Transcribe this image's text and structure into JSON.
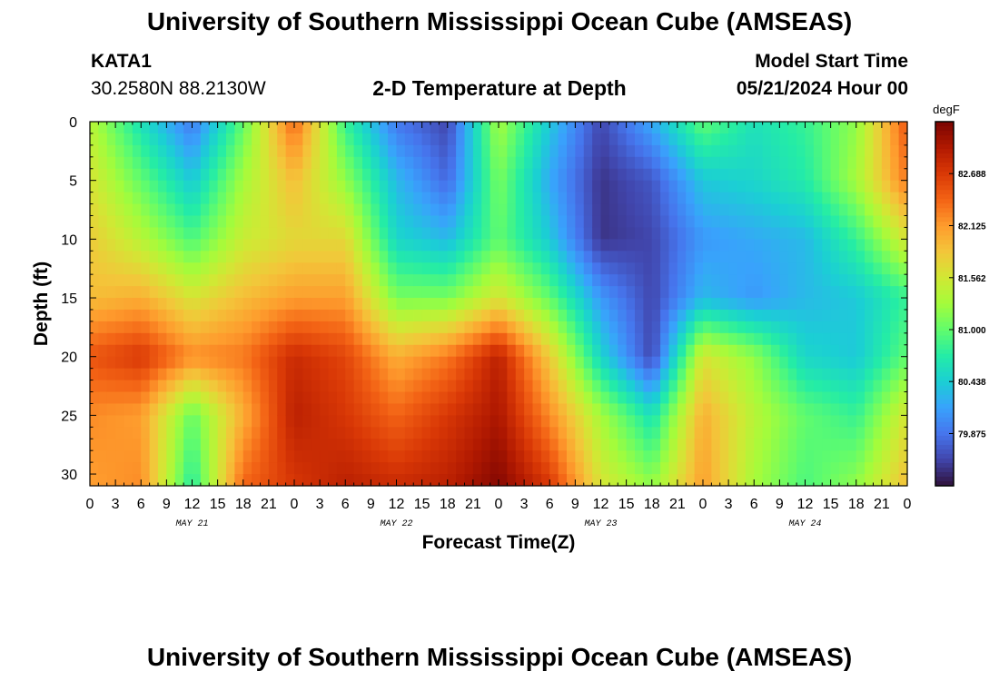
{
  "header": {
    "title": "University of Southern Mississippi Ocean Cube (AMSEAS)",
    "station_id": "KATA1",
    "station_coords": "30.2580N  88.2130W",
    "plot_title": "2-D Temperature at Depth",
    "model_start_label": "Model Start Time",
    "model_start_value": "05/21/2024 Hour 00"
  },
  "footer": {
    "title": "University of Southern Mississippi Ocean Cube (AMSEAS)"
  },
  "colors": {
    "background": "#ffffff",
    "axis": "#000000",
    "colormap": [
      "#30123b",
      "#4145ab",
      "#4675ed",
      "#39a2fc",
      "#1bcfd4",
      "#24eca6",
      "#61fc6c",
      "#a4fc3b",
      "#d1e834",
      "#f3c63a",
      "#fe9b2d",
      "#f36315",
      "#d93806",
      "#b11901",
      "#7a0402"
    ]
  },
  "chart_data": {
    "type": "heatmap",
    "title": "2-D Temperature at Depth",
    "xlabel": "Forecast Time(Z)",
    "ylabel": "Depth (ft)",
    "x_hours": [
      0,
      96
    ],
    "xtick_labels": [
      "0",
      "3",
      "6",
      "9",
      "12",
      "15",
      "18",
      "21",
      "0",
      "3",
      "6",
      "9",
      "12",
      "15",
      "18",
      "21",
      "0",
      "3",
      "6",
      "9",
      "12",
      "15",
      "18",
      "21",
      "0",
      "3",
      "6",
      "9",
      "12",
      "15",
      "18",
      "21",
      "0"
    ],
    "day_labels": [
      "MAY 21",
      "MAY 22",
      "MAY 23",
      "MAY 24"
    ],
    "day_label_hours": [
      12,
      36,
      60,
      84
    ],
    "ylim": [
      0,
      31
    ],
    "yticks": [
      0,
      5,
      10,
      15,
      20,
      25,
      30
    ],
    "ytick_labels": [
      "0",
      "5",
      "10",
      "15",
      "20",
      "25",
      "30"
    ],
    "colorbar": {
      "unit": "degF",
      "range": [
        79.31,
        83.25
      ],
      "ticks": [
        79.875,
        80.438,
        81.0,
        81.562,
        82.125,
        82.688
      ],
      "tick_labels": [
        "79.875",
        "80.438",
        "81.000",
        "81.562",
        "82.125",
        "82.688"
      ]
    },
    "grid": {
      "hours": [
        0,
        6,
        12,
        18,
        24,
        30,
        36,
        42,
        48,
        54,
        60,
        66,
        72,
        78,
        84,
        90,
        96
      ],
      "depths": [
        0,
        5,
        10,
        15,
        20,
        25,
        31
      ],
      "values": [
        [
          81.4,
          80.6,
          79.9,
          81.0,
          82.4,
          80.8,
          79.9,
          79.6,
          81.3,
          80.4,
          79.6,
          80.2,
          81.0,
          80.6,
          80.8,
          81.2,
          82.5
        ],
        [
          81.6,
          81.0,
          80.4,
          81.3,
          81.9,
          81.2,
          80.3,
          79.8,
          81.1,
          80.2,
          79.5,
          79.7,
          80.4,
          80.5,
          80.7,
          81.3,
          82.3
        ],
        [
          81.8,
          81.4,
          80.9,
          81.5,
          81.7,
          81.7,
          80.5,
          80.3,
          81.0,
          80.4,
          79.5,
          79.6,
          80.1,
          80.2,
          80.3,
          80.8,
          81.6
        ],
        [
          81.9,
          82.0,
          81.6,
          81.9,
          82.1,
          82.1,
          81.1,
          81.1,
          81.6,
          81.0,
          80.1,
          79.6,
          80.3,
          80.1,
          80.3,
          80.4,
          80.8
        ],
        [
          82.5,
          82.7,
          82.2,
          82.3,
          82.8,
          82.6,
          82.0,
          82.3,
          82.9,
          81.8,
          80.5,
          79.6,
          81.6,
          81.2,
          80.5,
          80.4,
          81.0
        ],
        [
          82.2,
          82.1,
          81.0,
          82.0,
          82.9,
          82.7,
          82.4,
          82.7,
          83.0,
          82.2,
          81.3,
          80.6,
          82.0,
          81.4,
          81.0,
          80.8,
          81.6
        ],
        [
          82.1,
          82.2,
          80.7,
          82.4,
          82.7,
          82.9,
          82.8,
          82.9,
          83.2,
          82.7,
          81.6,
          81.2,
          82.1,
          81.3,
          80.9,
          81.2,
          81.9
        ]
      ]
    }
  }
}
